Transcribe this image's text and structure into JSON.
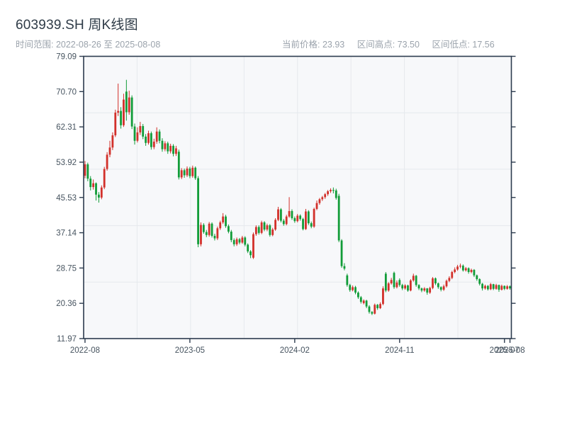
{
  "header": {
    "title": "603939.SH 周K线图",
    "subtitle_left": "时间范围: 2022-08-26 至 2025-08-08",
    "stats": [
      {
        "text": "当前价格: 23.93"
      },
      {
        "text": "区间高点: 73.50"
      },
      {
        "text": "区间低点: 17.56"
      }
    ]
  },
  "chart_data": {
    "type": "candlestick",
    "title": "603939.SH 周K线图",
    "xlabel": "",
    "ylabel": "",
    "y_ticks": [
      79.09,
      70.7,
      62.31,
      53.92,
      45.53,
      37.14,
      28.75,
      20.36,
      11.97
    ],
    "y_range": [
      11.97,
      79.09
    ],
    "x_ticks": [
      {
        "label": "2022-08",
        "week": 0
      },
      {
        "label": "2023-05",
        "week": 38
      },
      {
        "label": "2024-02",
        "week": 76
      },
      {
        "label": "2024-11",
        "week": 114
      },
      {
        "label": "2025-07",
        "week": 152
      },
      {
        "label": "2025-08",
        "week": 154
      }
    ],
    "grid": {
      "on": true,
      "v_divisions": 8,
      "h_divisions": 5
    },
    "colors": {
      "up": "#d2302a",
      "down": "#119c38",
      "frame": "#2c3b4e",
      "grid": "#e6e9ed",
      "plot_bg": "#f7f8fa",
      "tick_label": "#46535f"
    },
    "current_price": 23.93,
    "range_high": 73.5,
    "range_low": 17.56,
    "candles_format": [
      "open",
      "high",
      "low",
      "close"
    ],
    "candles": [
      [
        50.7,
        54.2,
        50.1,
        53.4
      ],
      [
        53.4,
        53.8,
        49.4,
        50.0
      ],
      [
        50.0,
        50.6,
        47.2,
        48.0
      ],
      [
        48.0,
        49.8,
        47.4,
        48.9
      ],
      [
        48.9,
        49.1,
        44.8,
        46.2
      ],
      [
        46.2,
        46.8,
        44.3,
        45.5
      ],
      [
        45.5,
        48.4,
        45.1,
        47.9
      ],
      [
        47.9,
        52.8,
        47.5,
        52.3
      ],
      [
        52.3,
        56.3,
        51.9,
        55.7
      ],
      [
        55.7,
        59.0,
        55.1,
        57.4
      ],
      [
        57.4,
        61.0,
        56.8,
        60.3
      ],
      [
        60.3,
        66.4,
        59.9,
        65.7
      ],
      [
        65.7,
        72.6,
        64.9,
        66.1
      ],
      [
        66.1,
        67.0,
        61.9,
        62.7
      ],
      [
        62.7,
        70.2,
        62.3,
        68.8
      ],
      [
        70.7,
        73.5,
        63.8,
        65.8
      ],
      [
        65.8,
        70.9,
        65.2,
        69.3
      ],
      [
        69.3,
        69.8,
        61.8,
        62.4
      ],
      [
        62.4,
        63.1,
        58.1,
        59.0
      ],
      [
        59.0,
        62.2,
        58.6,
        61.0
      ],
      [
        61.0,
        63.5,
        60.4,
        62.5
      ],
      [
        62.5,
        63.0,
        59.4,
        60.0
      ],
      [
        60.0,
        60.6,
        57.8,
        58.5
      ],
      [
        58.5,
        61.4,
        58.1,
        60.8
      ],
      [
        60.8,
        61.2,
        56.9,
        57.5
      ],
      [
        57.5,
        59.5,
        57.0,
        58.8
      ],
      [
        58.8,
        62.2,
        58.3,
        61.2
      ],
      [
        61.2,
        61.7,
        58.4,
        59.0
      ],
      [
        59.0,
        59.6,
        56.4,
        57.0
      ],
      [
        57.0,
        58.9,
        56.5,
        58.4
      ],
      [
        58.4,
        58.8,
        55.9,
        56.5
      ],
      [
        56.5,
        58.3,
        56.0,
        57.8
      ],
      [
        57.8,
        58.2,
        55.3,
        55.9
      ],
      [
        55.9,
        57.8,
        55.4,
        57.2
      ],
      [
        56.4,
        56.9,
        49.8,
        50.3
      ],
      [
        50.3,
        52.5,
        49.9,
        52.0
      ],
      [
        52.0,
        52.4,
        50.2,
        50.8
      ],
      [
        50.8,
        52.9,
        50.4,
        52.4
      ],
      [
        52.4,
        52.8,
        50.1,
        50.6
      ],
      [
        50.6,
        53.1,
        50.2,
        52.6
      ],
      [
        52.6,
        52.9,
        49.7,
        50.1
      ],
      [
        50.1,
        50.6,
        33.7,
        34.4
      ],
      [
        34.4,
        39.6,
        33.9,
        39.0
      ],
      [
        39.0,
        39.4,
        36.9,
        37.3
      ],
      [
        37.3,
        37.8,
        36.1,
        36.6
      ],
      [
        36.6,
        39.7,
        36.2,
        39.3
      ],
      [
        39.3,
        39.6,
        36.0,
        36.4
      ],
      [
        36.4,
        36.9,
        35.3,
        35.8
      ],
      [
        35.8,
        38.6,
        35.4,
        38.2
      ],
      [
        38.2,
        40.0,
        37.8,
        39.6
      ],
      [
        39.6,
        41.8,
        39.2,
        41.0
      ],
      [
        41.0,
        41.4,
        38.3,
        38.7
      ],
      [
        38.7,
        39.1,
        37.0,
        37.4
      ],
      [
        37.4,
        37.8,
        34.9,
        35.4
      ],
      [
        35.4,
        35.8,
        33.9,
        34.4
      ],
      [
        34.4,
        36.0,
        34.0,
        35.6
      ],
      [
        35.6,
        35.9,
        34.4,
        34.8
      ],
      [
        34.8,
        36.4,
        34.5,
        36.0
      ],
      [
        36.0,
        36.3,
        33.9,
        34.3
      ],
      [
        34.3,
        34.6,
        32.3,
        32.7
      ],
      [
        32.7,
        33.0,
        31.1,
        31.8
      ],
      [
        31.2,
        37.2,
        30.9,
        36.8
      ],
      [
        36.8,
        38.9,
        36.4,
        38.5
      ],
      [
        38.5,
        38.9,
        36.7,
        37.1
      ],
      [
        37.1,
        40.0,
        36.8,
        39.6
      ],
      [
        39.6,
        39.9,
        37.5,
        37.9
      ],
      [
        37.9,
        39.3,
        37.5,
        38.9
      ],
      [
        38.9,
        39.2,
        36.2,
        36.6
      ],
      [
        36.6,
        38.3,
        36.3,
        37.9
      ],
      [
        37.9,
        40.6,
        37.6,
        40.2
      ],
      [
        40.2,
        43.3,
        39.9,
        42.7
      ],
      [
        42.7,
        43.0,
        39.6,
        40.0
      ],
      [
        40.0,
        40.4,
        38.8,
        39.2
      ],
      [
        39.2,
        41.4,
        38.9,
        41.0
      ],
      [
        41.0,
        45.6,
        40.7,
        42.3
      ],
      [
        42.3,
        42.7,
        40.2,
        40.6
      ],
      [
        40.6,
        41.0,
        39.5,
        39.9
      ],
      [
        39.9,
        41.6,
        39.6,
        41.2
      ],
      [
        41.2,
        41.5,
        40.0,
        40.4
      ],
      [
        40.4,
        40.7,
        37.7,
        38.0
      ],
      [
        38.0,
        42.8,
        37.8,
        42.2
      ],
      [
        42.2,
        42.5,
        39.0,
        39.4
      ],
      [
        39.4,
        39.8,
        38.2,
        38.6
      ],
      [
        38.6,
        43.1,
        38.3,
        42.8
      ],
      [
        42.8,
        44.8,
        42.5,
        44.2
      ],
      [
        44.2,
        45.4,
        43.8,
        45.1
      ],
      [
        45.1,
        45.9,
        44.7,
        45.6
      ],
      [
        45.6,
        46.6,
        45.2,
        46.3
      ],
      [
        46.3,
        47.3,
        45.9,
        47.0
      ],
      [
        47.0,
        47.7,
        46.6,
        47.3
      ],
      [
        47.3,
        47.9,
        46.5,
        47.2
      ],
      [
        47.2,
        47.6,
        45.0,
        45.4
      ],
      [
        45.9,
        46.4,
        34.9,
        35.3
      ],
      [
        35.3,
        35.6,
        28.8,
        29.2
      ],
      [
        29.2,
        29.9,
        28.2,
        28.6
      ],
      [
        27.0,
        27.4,
        24.3,
        24.7
      ],
      [
        24.7,
        25.0,
        23.1,
        23.5
      ],
      [
        23.5,
        24.6,
        23.2,
        24.2
      ],
      [
        24.2,
        24.5,
        22.5,
        22.9
      ],
      [
        22.9,
        23.2,
        21.4,
        21.8
      ],
      [
        21.8,
        22.1,
        20.3,
        20.7
      ],
      [
        20.4,
        21.3,
        20.1,
        21.0
      ],
      [
        21.0,
        21.2,
        19.2,
        19.6
      ],
      [
        19.6,
        19.9,
        17.9,
        18.3
      ],
      [
        18.3,
        18.5,
        17.56,
        17.9
      ],
      [
        17.9,
        20.3,
        17.7,
        20.0
      ],
      [
        20.0,
        20.2,
        18.8,
        19.2
      ],
      [
        19.2,
        20.6,
        19.0,
        20.2
      ],
      [
        20.2,
        24.4,
        19.9,
        23.9
      ],
      [
        27.4,
        27.8,
        23.0,
        23.4
      ],
      [
        23.4,
        25.4,
        23.1,
        25.1
      ],
      [
        25.1,
        26.4,
        24.8,
        25.9
      ],
      [
        27.6,
        27.9,
        23.8,
        24.2
      ],
      [
        24.2,
        25.8,
        23.9,
        25.3
      ],
      [
        25.9,
        26.3,
        24.3,
        24.7
      ],
      [
        24.7,
        25.0,
        23.5,
        23.9
      ],
      [
        23.9,
        24.9,
        23.6,
        24.6
      ],
      [
        24.6,
        24.8,
        23.1,
        23.4
      ],
      [
        23.4,
        26.1,
        23.2,
        25.8
      ],
      [
        25.8,
        27.4,
        25.5,
        26.9
      ],
      [
        26.9,
        27.1,
        24.3,
        24.7
      ],
      [
        24.7,
        24.9,
        23.5,
        23.9
      ],
      [
        23.9,
        24.1,
        23.0,
        23.4
      ],
      [
        23.4,
        24.2,
        23.1,
        23.9
      ],
      [
        23.9,
        24.0,
        22.4,
        22.9
      ],
      [
        22.9,
        24.3,
        22.6,
        24.0
      ],
      [
        24.0,
        26.6,
        23.7,
        26.3
      ],
      [
        26.3,
        26.5,
        24.7,
        25.1
      ],
      [
        25.1,
        25.3,
        23.8,
        24.2
      ],
      [
        24.2,
        24.4,
        23.2,
        23.6
      ],
      [
        23.6,
        24.8,
        23.3,
        24.4
      ],
      [
        24.4,
        26.0,
        24.1,
        25.7
      ],
      [
        25.7,
        26.8,
        25.4,
        26.4
      ],
      [
        26.4,
        28.1,
        26.1,
        27.8
      ],
      [
        27.8,
        28.9,
        27.5,
        28.4
      ],
      [
        28.4,
        29.5,
        28.1,
        29.1
      ],
      [
        29.1,
        29.8,
        28.7,
        29.3
      ],
      [
        29.3,
        29.6,
        27.9,
        28.2
      ],
      [
        28.2,
        29.0,
        27.9,
        28.7
      ],
      [
        28.7,
        28.9,
        27.4,
        27.8
      ],
      [
        27.8,
        28.6,
        27.5,
        28.3
      ],
      [
        28.3,
        28.5,
        26.6,
        27.0
      ],
      [
        27.0,
        27.2,
        25.7,
        26.1
      ],
      [
        26.1,
        26.3,
        24.6,
        25.0
      ],
      [
        25.0,
        25.2,
        23.4,
        23.9
      ],
      [
        23.9,
        24.8,
        23.6,
        24.5
      ],
      [
        24.5,
        24.7,
        23.4,
        23.7
      ],
      [
        23.7,
        25.2,
        23.5,
        24.9
      ],
      [
        24.9,
        25.0,
        23.5,
        23.8
      ],
      [
        23.8,
        25.0,
        23.6,
        24.7
      ],
      [
        24.7,
        24.8,
        23.1,
        23.6
      ],
      [
        23.6,
        24.8,
        23.4,
        24.5
      ],
      [
        24.5,
        24.6,
        23.5,
        23.8
      ],
      [
        23.8,
        24.7,
        23.6,
        24.4
      ],
      [
        24.4,
        24.6,
        23.6,
        23.93
      ]
    ]
  }
}
